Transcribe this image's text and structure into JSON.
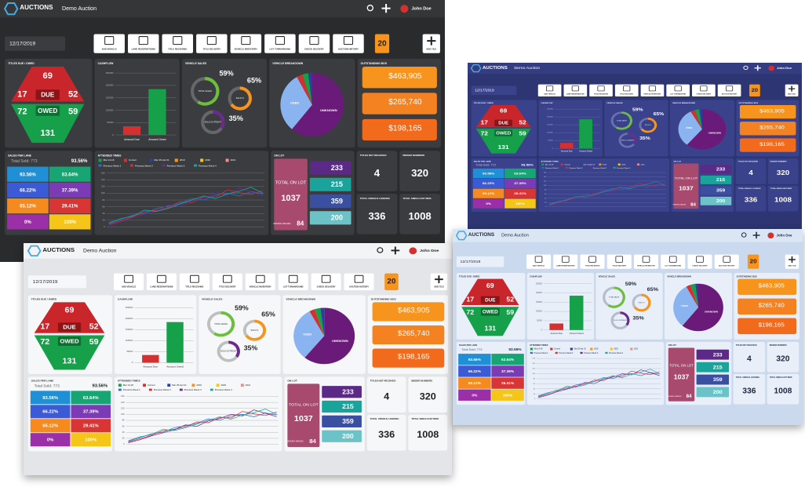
{
  "header": {
    "logo": "AUCTIONS",
    "title": "Demo Auction",
    "user": "John Doe",
    "date": "12/17/2019"
  },
  "toolbar": {
    "buttons": [
      "ADD VEHICLE",
      "LANE RESERVATIONS",
      "TITLE RECEIVING",
      "TITLE DELIVERY",
      "VEHICLE INVENTORY",
      "LOT TURNAROUND",
      "CHECK DELIVERY",
      "AUCTION HISTORY"
    ],
    "badge": "20",
    "add_tile": "ADD TILE"
  },
  "titles": {
    "title": "TITLES DUE / OWED",
    "due_total": "69",
    "due_left": "17",
    "due_label": "DUE",
    "due_right": "52",
    "owed_left": "72",
    "owed_label": "OWED",
    "owed_right": "59",
    "owed_total": "131"
  },
  "cashflow": {
    "title": "CASHFLOW",
    "chart": {
      "type": "bar",
      "categories": [
        "Amount Due",
        "Amount Owed"
      ],
      "values": [
        35000,
        185000
      ],
      "colors": [
        "#d62f2f",
        "#16a04a"
      ],
      "ylim": [
        0,
        250000
      ],
      "yticks": [
        0,
        50000,
        100000,
        150000,
        200000,
        250000
      ]
    }
  },
  "vehicle_sales": {
    "title": "VEHICLE SALES",
    "values": [
      59,
      65,
      35
    ],
    "value_labels": [
      "59%",
      "65%",
      "35%"
    ],
    "labels": [
      "TOTAL SALES",
      "SOLD %",
      "SOLD OUTRIGHT"
    ],
    "colors": [
      "#6cbf3c",
      "#f7941d",
      "#6a2b8f"
    ]
  },
  "breakdown": {
    "title": "VEHICLE BREAKDOWN",
    "type": "pie",
    "labels": [
      "UNKNOWN",
      "USED",
      null,
      null,
      null
    ],
    "values": [
      61,
      31,
      3,
      3,
      2
    ],
    "colors": [
      "#6a1b7a",
      "#8ab4f0",
      "#d62f2f",
      "#16a04a",
      "#2b3f9e"
    ]
  },
  "bos": {
    "title": "OUTSTANDING BOS",
    "amounts": [
      "$463,905",
      "$265,740",
      "$198,165"
    ],
    "colors": [
      "#f7941d",
      "#f58220",
      "#f26b1d"
    ]
  },
  "sales_per_lane": {
    "title": "SALES PER LANE",
    "total": "Total Sold: 773",
    "percent": "93.56%",
    "cells": [
      [
        "93.56%",
        "63.64%"
      ],
      [
        "66.22%",
        "37.39%"
      ],
      [
        "65.12%",
        "29.41%"
      ],
      [
        "0%",
        "100%"
      ]
    ],
    "colors": [
      [
        "#1f8fd6",
        "#17a673"
      ],
      [
        "#3b5bd6",
        "#7b3bb5"
      ],
      [
        "#f58a1f",
        "#d93535"
      ],
      [
        "#9b2fa8",
        "#f5c518"
      ]
    ]
  },
  "attended": {
    "title": "ATTENDED TIMES",
    "filters": [
      "Mar 14-18",
      "Current",
      "Mar 25-Apr 01",
      "2019",
      "2020",
      "2021"
    ],
    "filter_colors": [
      "#17a04a",
      "#d62f2f",
      "#2b3f9e",
      "#f7941d",
      "#f5c518",
      "#f28a8a"
    ],
    "chart": {
      "type": "line",
      "ylim": [
        0,
        160
      ],
      "yticks": [
        0,
        20,
        40,
        60,
        80,
        100,
        120,
        140,
        160
      ],
      "series": [
        {
          "name": "Previous Week 1",
          "color": "#2b6cd0",
          "values": [
            10,
            22,
            35,
            40,
            55,
            62,
            70,
            85,
            80,
            95,
            100,
            92,
            105,
            98
          ]
        },
        {
          "name": "Previous Week 2",
          "color": "#d62f2f",
          "values": [
            8,
            18,
            30,
            45,
            50,
            58,
            75,
            72,
            90,
            88,
            110,
            102,
            96,
            108
          ]
        },
        {
          "name": "Previous Week 3",
          "color": "#6a2b8f",
          "values": [
            5,
            15,
            28,
            38,
            48,
            65,
            60,
            78,
            86,
            100,
            95,
            115,
            104,
            92
          ]
        },
        {
          "name": "Previous Week 4",
          "color": "#17a6a0",
          "values": [
            12,
            25,
            32,
            50,
            46,
            55,
            68,
            80,
            92,
            84,
            98,
            106,
            118,
            100
          ]
        }
      ]
    }
  },
  "on_lot": {
    "title": "ON LOT",
    "total_label": "TOTAL ON LOT",
    "total": "1037",
    "counts": [
      "233",
      "215",
      "359",
      "200"
    ],
    "colors": [
      "#5b2a86",
      "#1aa39a",
      "#3a4fa0",
      "#6cc3c7"
    ],
    "block_color": "#a84a6e",
    "missing_label": "MISSING IMAGES",
    "missing": "84"
  },
  "tiles": [
    {
      "title": "TITLES NOT RECEIVED",
      "value": "4"
    },
    {
      "title": "BIDDER NUMBERS",
      "value": "320"
    },
    {
      "title": "TOTAL UNSOLD LOOKING",
      "value": "336"
    },
    {
      "title": "TOTAL SIMULCAST BIDS",
      "value": "1008"
    }
  ],
  "themes": [
    {
      "bg": "#2a2b2d",
      "header": "#353638",
      "panel": "#3b3c3f",
      "text": "#ffffff",
      "sub": "#b8b8b8",
      "button": "#ffffff",
      "icon": "#222222"
    },
    {
      "bg": "#2d3572",
      "header": "#343d80",
      "panel": "#39428a",
      "text": "#ffffff",
      "sub": "#c0c6ee",
      "button": "#ffffff",
      "icon": "#222222"
    },
    {
      "bg": "#e3e5e8",
      "header": "#f3f4f5",
      "panel": "#f6f7f8",
      "text": "#222222",
      "sub": "#555555",
      "button": "#ffffff",
      "icon": "#222222"
    },
    {
      "bg": "#cad9ee",
      "header": "#dbe6f4",
      "panel": "#e8eff9",
      "text": "#222a40",
      "sub": "#55607a",
      "button": "#ffffff",
      "icon": "#222222"
    }
  ]
}
